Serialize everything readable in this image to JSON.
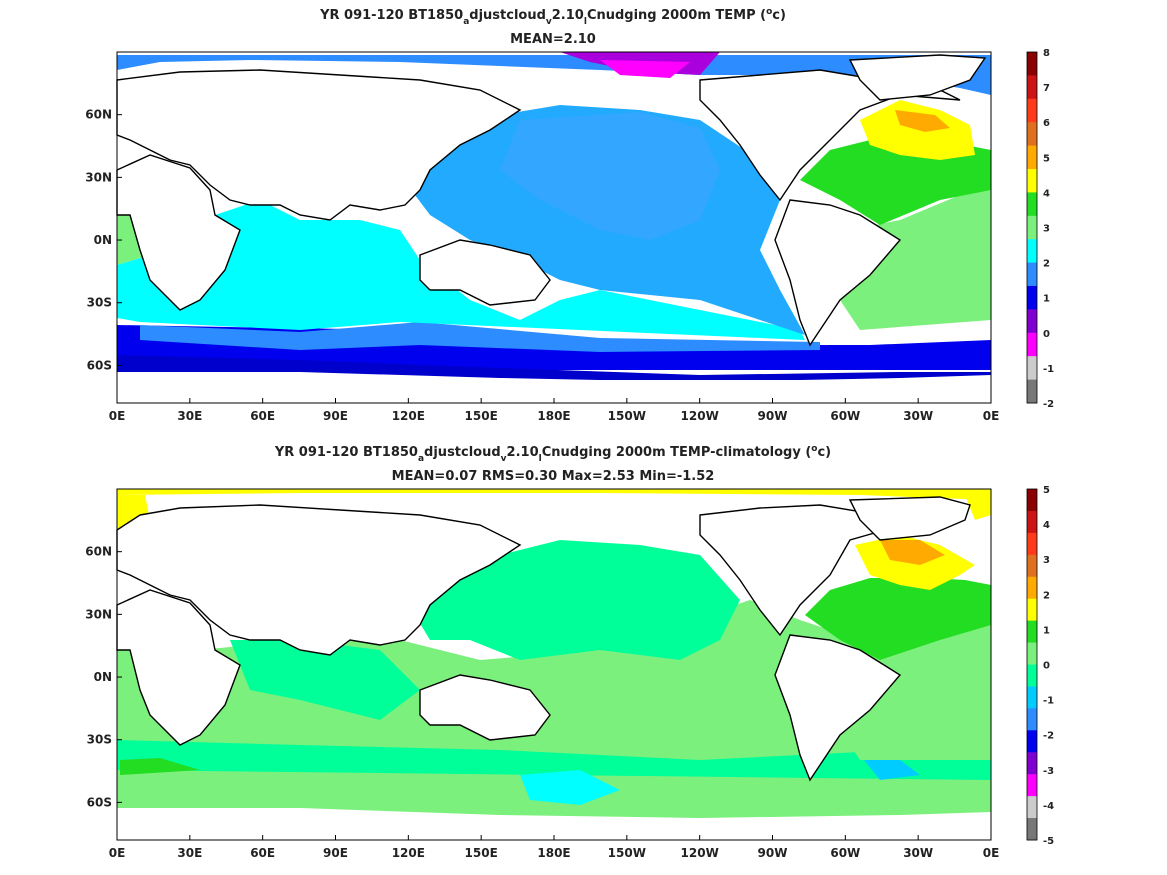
{
  "chart_data": [
    {
      "type": "heatmap",
      "title_parts": [
        "YR 091-120 BT1850",
        "a",
        "djustcloud",
        "v",
        "2.10",
        "l",
        "Cnudging 2000m TEMP (",
        "o",
        "c)"
      ],
      "subtitle": "MEAN=2.10",
      "x_ticks": [
        "0E",
        "30E",
        "60E",
        "90E",
        "120E",
        "150E",
        "180E",
        "150W",
        "120W",
        "90W",
        "60W",
        "30W",
        "0E"
      ],
      "y_ticks": [
        "60N",
        "30N",
        "0N",
        "30S",
        "60S"
      ],
      "xlim": [
        0,
        360
      ],
      "ylim": [
        -78,
        90
      ],
      "colorbar": {
        "levels": [
          "8",
          "7",
          "6",
          "5",
          "4",
          "3",
          "2",
          "1",
          "0",
          "-1",
          "-2"
        ],
        "colors": [
          "#8b0000",
          "#cc1414",
          "#ff3a1a",
          "#e07020",
          "#ffaa00",
          "#ffff00",
          "#22dd22",
          "#7cf07c",
          "#00ffff",
          "#2d8cff",
          "#0000ee",
          "#8000d0",
          "#ff00ff",
          "#cccccc",
          "#777777"
        ]
      }
    },
    {
      "type": "heatmap",
      "title_parts": [
        "YR 091-120 BT1850",
        "a",
        "djustcloud",
        "v",
        "2.10",
        "l",
        "Cnudging 2000m TEMP-climatology (",
        "o",
        "c)"
      ],
      "subtitle": "MEAN=0.07   RMS=0.30   Max=2.53   Min=-1.52",
      "x_ticks": [
        "0E",
        "30E",
        "60E",
        "90E",
        "120E",
        "150E",
        "180E",
        "150W",
        "120W",
        "90W",
        "60W",
        "30W",
        "0E"
      ],
      "y_ticks": [
        "60N",
        "30N",
        "0N",
        "30S",
        "60S"
      ],
      "xlim": [
        0,
        360
      ],
      "ylim": [
        -78,
        90
      ],
      "colorbar": {
        "levels": [
          "5",
          "4",
          "3",
          "2",
          "1",
          "0",
          "-1",
          "-2",
          "-3",
          "-4",
          "-5"
        ],
        "colors": [
          "#8b0000",
          "#cc1414",
          "#ff3a1a",
          "#e07020",
          "#ffaa00",
          "#ffff00",
          "#22dd22",
          "#7cf07c",
          "#00ff99",
          "#00ccff",
          "#2d8cff",
          "#0000ee",
          "#8000d0",
          "#ff00ff",
          "#cccccc",
          "#777777"
        ]
      }
    }
  ]
}
